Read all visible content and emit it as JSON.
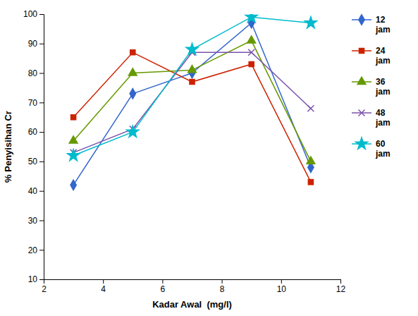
{
  "chart_data": {
    "type": "line",
    "xlabel": "Kadar Awal  (mg/l)",
    "ylabel": "% Penyisihan Cr",
    "x": [
      3,
      5,
      7,
      9,
      11
    ],
    "series": [
      {
        "name": "12\njam",
        "color": "#3366CC",
        "marker": "diamond",
        "values": [
          42,
          73,
          80,
          97,
          48
        ]
      },
      {
        "name": "24\njam",
        "color": "#CC2200",
        "marker": "square",
        "values": [
          65,
          87,
          77,
          83,
          43
        ]
      },
      {
        "name": "36\njam",
        "color": "#669900",
        "marker": "triangle",
        "values": [
          57,
          80,
          81,
          91,
          50
        ]
      },
      {
        "name": "48\njam",
        "color": "#7B52AB",
        "marker": "x",
        "values": [
          53,
          61,
          87,
          87,
          68
        ]
      },
      {
        "name": "60\njam",
        "color": "#00BBCC",
        "marker": "star",
        "values": [
          52,
          60,
          88,
          99,
          97
        ]
      }
    ],
    "xlim": [
      2,
      12
    ],
    "ylim": [
      10,
      100
    ],
    "xticks": [
      2,
      4,
      6,
      8,
      10,
      12
    ],
    "yticks": [
      10,
      20,
      30,
      40,
      50,
      60,
      70,
      80,
      90,
      100
    ],
    "grid": false,
    "legend": "right"
  }
}
